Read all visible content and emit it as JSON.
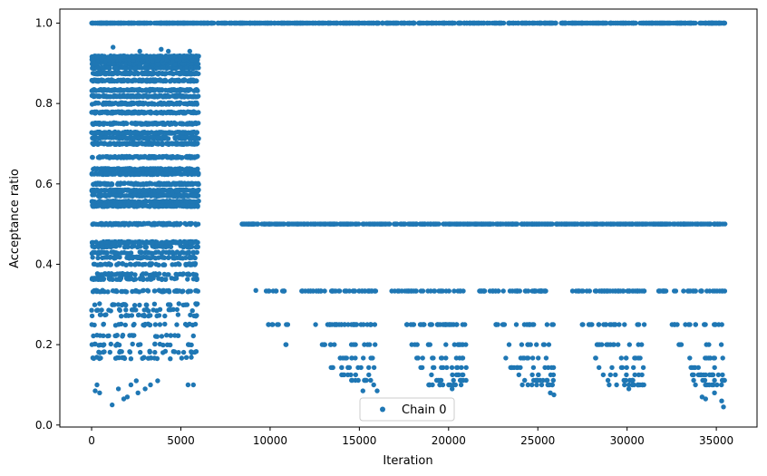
{
  "chart_data": {
    "type": "scatter",
    "xlabel": "Iteration",
    "ylabel": "Acceptance ratio",
    "xlim": [
      -1780,
      37280
    ],
    "ylim": [
      -0.005,
      1.035
    ],
    "xticks": [
      0,
      5000,
      10000,
      15000,
      20000,
      25000,
      30000,
      35000
    ],
    "xtick_labels": [
      "0",
      "5000",
      "10000",
      "15000",
      "20000",
      "25000",
      "30000",
      "35000"
    ],
    "yticks": [
      0.0,
      0.2,
      0.4,
      0.6,
      0.8,
      1.0
    ],
    "ytick_labels": [
      "0.0",
      "0.2",
      "0.4",
      "0.6",
      "0.8",
      "1.0"
    ],
    "grid": false,
    "legend": {
      "position": "lower-center",
      "entries": [
        "Chain 0"
      ]
    },
    "series": [
      {
        "name": "Chain 0",
        "color": "#1f77b4",
        "marker": "circle",
        "warmup_end": 6000,
        "total_iterations": 35500,
        "levels": [
          {
            "y": 1.0,
            "x_start": 0,
            "x_end": 35500
          },
          {
            "y": 0.5,
            "x_start": 8400,
            "x_end": 35500
          },
          {
            "y": 0.3333,
            "x_start": 9700,
            "x_end": 35500
          },
          {
            "y": 0.25,
            "x_start": 9900,
            "x_end": 35500
          },
          {
            "y": 0.2,
            "x_start": 10800,
            "x_end": 35500
          },
          {
            "y": 0.1667,
            "x_start": 12900,
            "x_end": 35500
          },
          {
            "y": 0.1429,
            "x_start": 13400,
            "x_end": 35500
          },
          {
            "y": 0.125,
            "x_start": 14000,
            "x_end": 35500
          },
          {
            "y": 0.1111,
            "x_start": 14500,
            "x_end": 35500
          },
          {
            "y": 0.1,
            "x_start": 15200,
            "x_end": 35500
          }
        ],
        "points": [
          [
            200,
            0.085
          ],
          [
            300,
            0.1
          ],
          [
            450,
            0.08
          ],
          [
            1150,
            0.05
          ],
          [
            1500,
            0.09
          ],
          [
            1800,
            0.065
          ],
          [
            2000,
            0.07
          ],
          [
            2200,
            0.1
          ],
          [
            2500,
            0.11
          ],
          [
            2600,
            0.08
          ],
          [
            3000,
            0.09
          ],
          [
            3300,
            0.1
          ],
          [
            3700,
            0.11
          ],
          [
            5400,
            0.1
          ],
          [
            5700,
            0.1
          ],
          [
            1200,
            0.94
          ],
          [
            2700,
            0.93
          ],
          [
            3900,
            0.935
          ],
          [
            4300,
            0.93
          ],
          [
            5500,
            0.93
          ],
          [
            9200,
            0.335
          ],
          [
            9900,
            0.25
          ],
          [
            10900,
            0.2
          ],
          [
            15200,
            0.085
          ],
          [
            16000,
            0.085
          ],
          [
            20200,
            0.09
          ],
          [
            20700,
            0.1
          ],
          [
            25900,
            0.075
          ],
          [
            25700,
            0.08
          ],
          [
            30100,
            0.09
          ],
          [
            30600,
            0.1
          ],
          [
            34400,
            0.065
          ],
          [
            34200,
            0.07
          ],
          [
            34900,
            0.08
          ],
          [
            35300,
            0.06
          ],
          [
            35400,
            0.045
          ]
        ]
      }
    ]
  }
}
